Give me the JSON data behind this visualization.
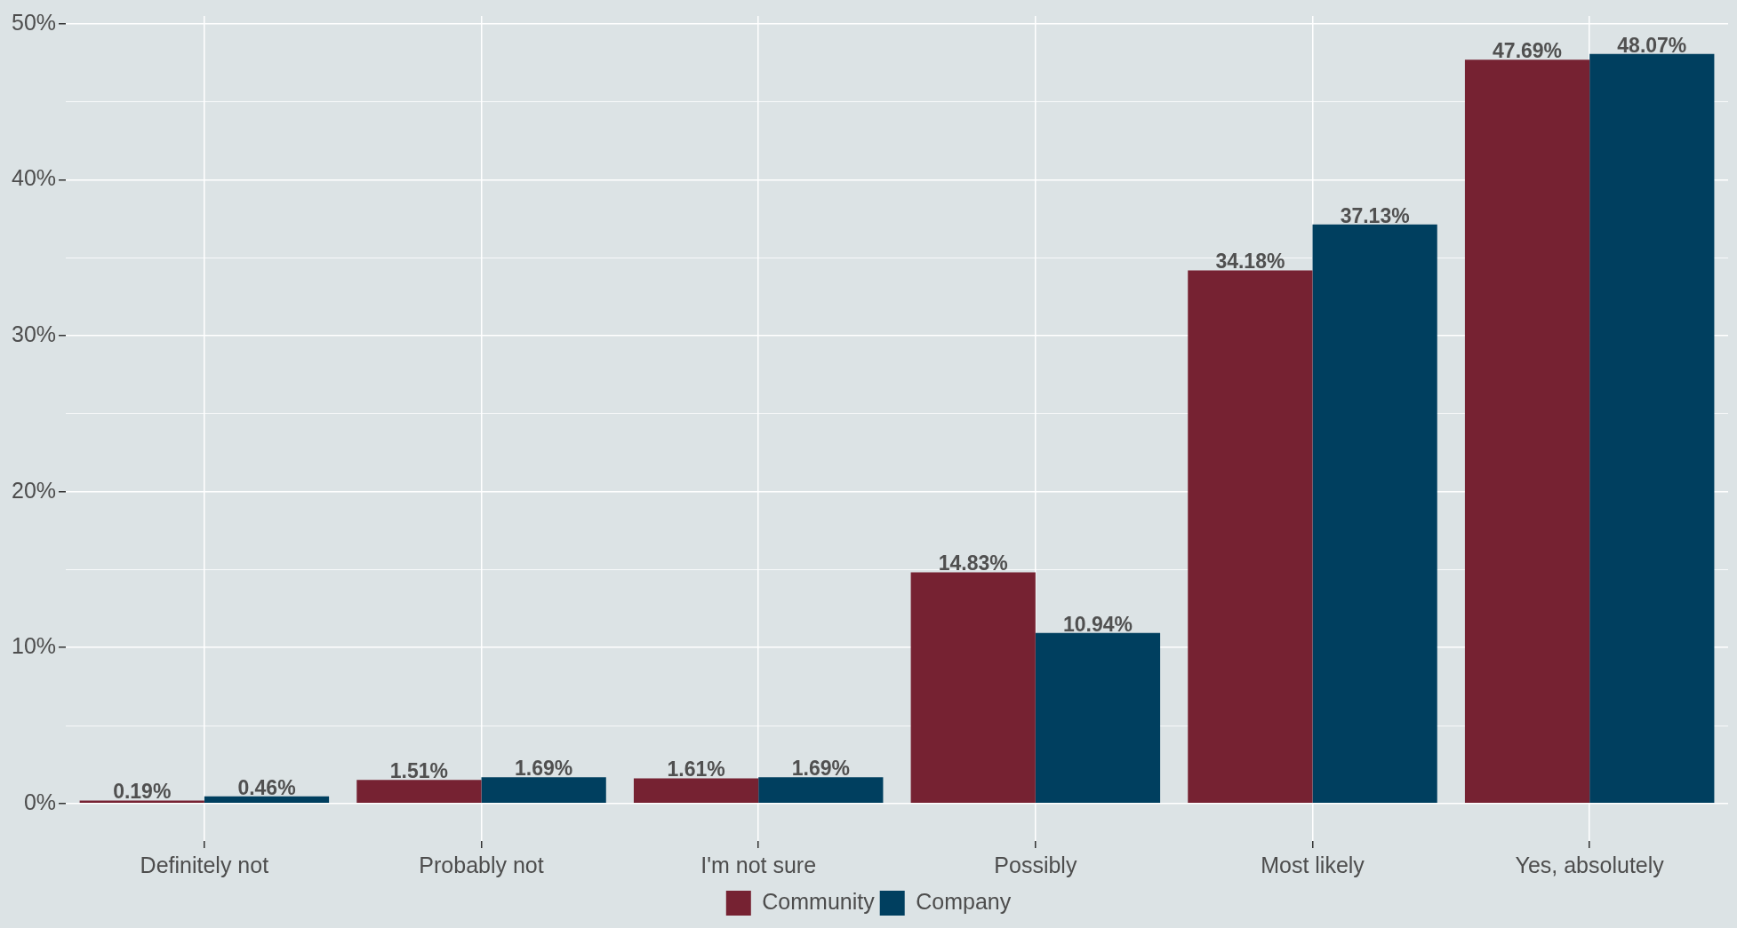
{
  "chart_data": {
    "type": "bar",
    "categories": [
      "Definitely not",
      "Probably not",
      "I'm not sure",
      "Possibly",
      "Most likely",
      "Yes, absolutely"
    ],
    "series": [
      {
        "name": "Community",
        "color": "#762232",
        "values": [
          0.19,
          1.51,
          1.61,
          14.83,
          34.18,
          47.69
        ],
        "value_labels": [
          "0.19%",
          "1.51%",
          "1.61%",
          "14.83%",
          "34.18%",
          "47.69%"
        ]
      },
      {
        "name": "Company",
        "color": "#003f5f",
        "values": [
          0.46,
          1.69,
          1.69,
          10.94,
          37.13,
          48.07
        ],
        "value_labels": [
          "0.46%",
          "1.69%",
          "1.69%",
          "10.94%",
          "37.13%",
          "48.07%"
        ]
      }
    ],
    "ylim": [
      -2.4,
      50.5
    ],
    "yticks": [
      {
        "value": 0,
        "label": "0%"
      },
      {
        "value": 5,
        "label": null
      },
      {
        "value": 10,
        "label": "10%"
      },
      {
        "value": 15,
        "label": null
      },
      {
        "value": 20,
        "label": "20%"
      },
      {
        "value": 25,
        "label": null
      },
      {
        "value": 30,
        "label": "30%"
      },
      {
        "value": 35,
        "label": null
      },
      {
        "value": 40,
        "label": "40%"
      },
      {
        "value": 45,
        "label": null
      },
      {
        "value": 50,
        "label": "50%"
      }
    ],
    "grid": true,
    "legend": "bottom"
  }
}
